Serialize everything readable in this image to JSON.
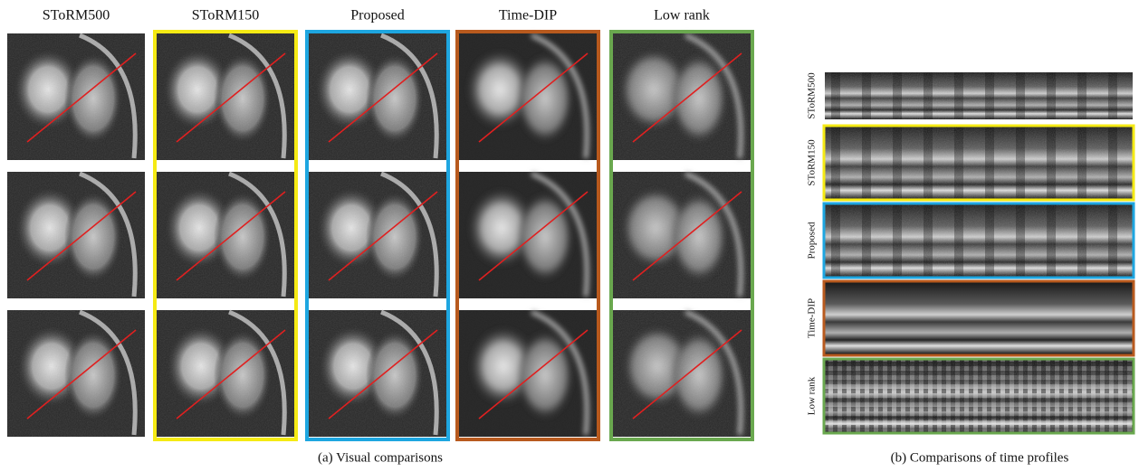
{
  "figure": {
    "panel_a": {
      "columns": [
        "SToRM500",
        "SToRM150",
        "Proposed",
        "Time-DIP",
        "Low rank"
      ],
      "caption": "(a) Visual comparisons"
    },
    "panel_b": {
      "rows": [
        "SToRM500",
        "SToRM150",
        "Proposed",
        "Time-DIP",
        "Low rank"
      ],
      "caption": "(b) Comparisons of time profiles"
    }
  }
}
